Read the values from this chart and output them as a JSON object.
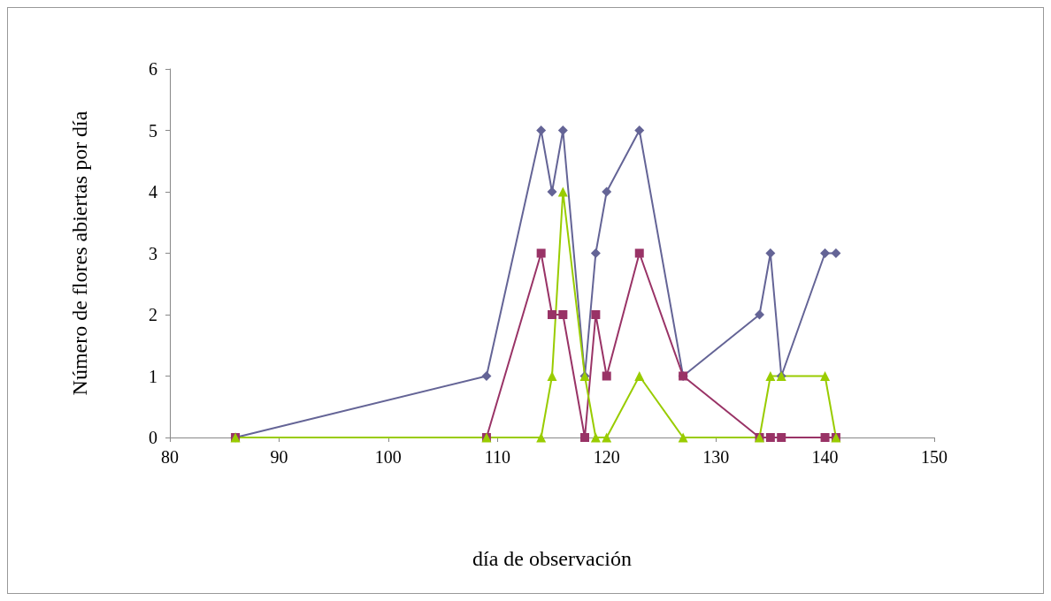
{
  "chart_data": {
    "type": "line",
    "xlabel": "día de observación",
    "ylabel": "Número de flores abiertas por día",
    "x": [
      86,
      109,
      114,
      115,
      116,
      118,
      119,
      120,
      123,
      127,
      134,
      135,
      136,
      140,
      141
    ],
    "series": [
      {
        "color": "#646496",
        "marker": "diamond",
        "values": [
          0,
          1,
          5,
          4,
          5,
          1,
          3,
          4,
          5,
          1,
          2,
          3,
          1,
          3,
          3
        ]
      },
      {
        "color": "#993366",
        "marker": "square",
        "values": [
          0,
          0,
          3,
          2,
          2,
          0,
          2,
          1,
          3,
          1,
          0,
          0,
          0,
          0,
          0
        ]
      },
      {
        "color": "#99cc00",
        "marker": "triangle",
        "values": [
          0,
          0,
          0,
          1,
          4,
          1,
          0,
          0,
          1,
          0,
          0,
          1,
          1,
          1,
          0
        ]
      }
    ],
    "xlim": [
      80,
      150
    ],
    "xticks": [
      80,
      90,
      100,
      110,
      120,
      130,
      140,
      150
    ],
    "ylim": [
      0,
      6
    ],
    "yticks": [
      0,
      1,
      2,
      3,
      4,
      5,
      6
    ],
    "grid": false,
    "line_style": "solid"
  }
}
